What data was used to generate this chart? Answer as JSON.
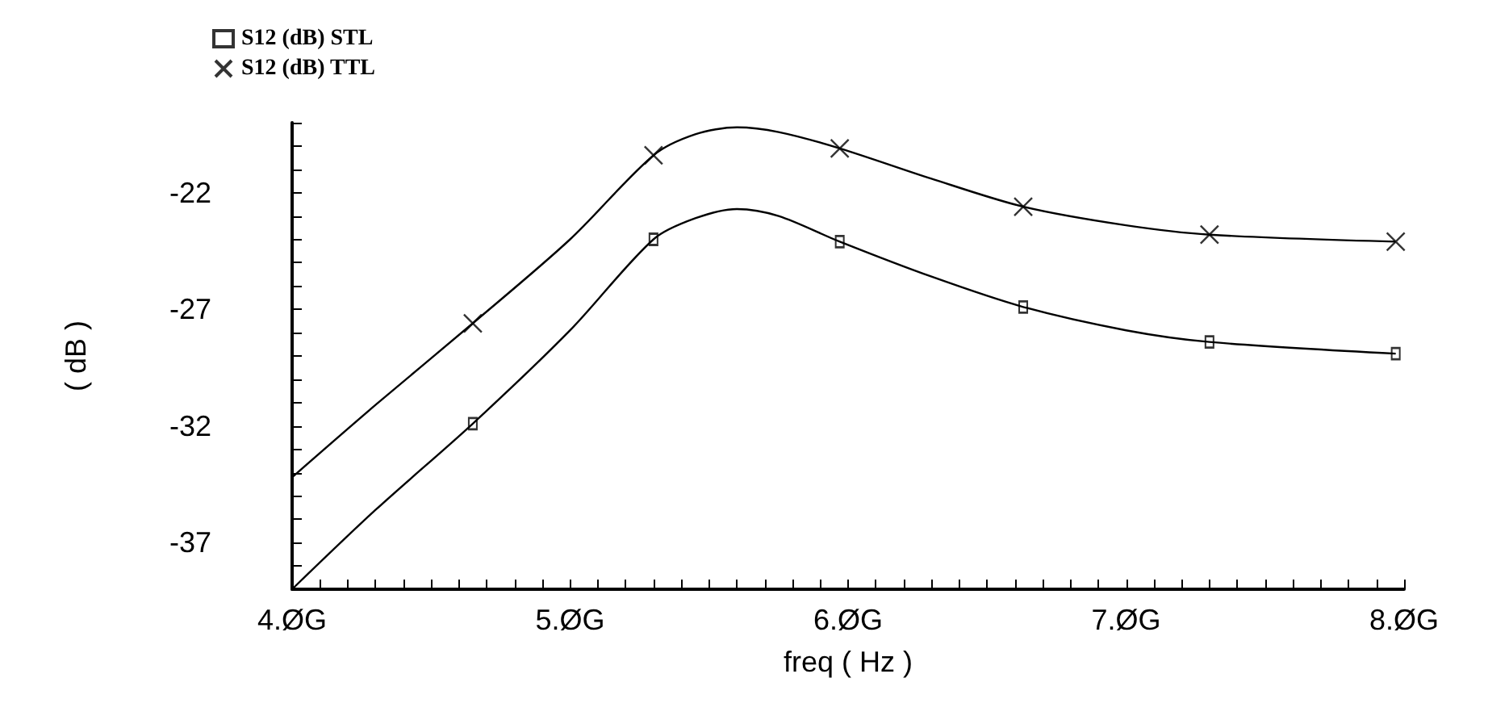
{
  "chart_data": {
    "type": "line",
    "xlabel": "freq ( Hz )",
    "ylabel": "( dB )",
    "xlim": [
      4,
      8
    ],
    "ylim": [
      -39,
      -19
    ],
    "xticks": [
      {
        "value": 4,
        "label": "4.ØG"
      },
      {
        "value": 4.1,
        "label": null
      },
      {
        "value": 4.2,
        "label": null
      },
      {
        "value": 4.3,
        "label": null
      },
      {
        "value": 4.4,
        "label": null
      },
      {
        "value": 4.5,
        "label": null
      },
      {
        "value": 4.6,
        "label": null
      },
      {
        "value": 4.7,
        "label": null
      },
      {
        "value": 4.8,
        "label": null
      },
      {
        "value": 4.9,
        "label": null
      },
      {
        "value": 5,
        "label": "5.ØG"
      },
      {
        "value": 5.1,
        "label": null
      },
      {
        "value": 5.2,
        "label": null
      },
      {
        "value": 5.3,
        "label": null
      },
      {
        "value": 5.4,
        "label": null
      },
      {
        "value": 5.5,
        "label": null
      },
      {
        "value": 5.6,
        "label": null
      },
      {
        "value": 5.7,
        "label": null
      },
      {
        "value": 5.8,
        "label": null
      },
      {
        "value": 5.9,
        "label": null
      },
      {
        "value": 6,
        "label": "6.ØG"
      },
      {
        "value": 6.1,
        "label": null
      },
      {
        "value": 6.2,
        "label": null
      },
      {
        "value": 6.3,
        "label": null
      },
      {
        "value": 6.4,
        "label": null
      },
      {
        "value": 6.5,
        "label": null
      },
      {
        "value": 6.6,
        "label": null
      },
      {
        "value": 6.7,
        "label": null
      },
      {
        "value": 6.8,
        "label": null
      },
      {
        "value": 6.9,
        "label": null
      },
      {
        "value": 7,
        "label": "7.ØG"
      },
      {
        "value": 7.1,
        "label": null
      },
      {
        "value": 7.2,
        "label": null
      },
      {
        "value": 7.3,
        "label": null
      },
      {
        "value": 7.4,
        "label": null
      },
      {
        "value": 7.5,
        "label": null
      },
      {
        "value": 7.6,
        "label": null
      },
      {
        "value": 7.7,
        "label": null
      },
      {
        "value": 7.8,
        "label": null
      },
      {
        "value": 7.9,
        "label": null
      },
      {
        "value": 8,
        "label": "8.ØG"
      }
    ],
    "yticks": [
      {
        "value": -39,
        "label": null
      },
      {
        "value": -38,
        "label": null
      },
      -37,
      {
        "value": -36,
        "label": null
      },
      {
        "value": -35,
        "label": null
      },
      {
        "value": -34,
        "label": null
      },
      {
        "value": -33,
        "label": null
      },
      -32,
      {
        "value": -31,
        "label": null
      },
      {
        "value": -30,
        "label": null
      },
      {
        "value": -29,
        "label": null
      },
      {
        "value": -28,
        "label": null
      },
      -27,
      {
        "value": -26,
        "label": null
      },
      {
        "value": -25,
        "label": null
      },
      {
        "value": -24,
        "label": null
      },
      {
        "value": -23,
        "label": null
      },
      -22,
      {
        "value": -21,
        "label": null
      },
      {
        "value": -20,
        "label": null
      },
      {
        "value": -19,
        "label": null
      }
    ],
    "grid": false,
    "legend": "top left",
    "line_style": "solid",
    "series": [
      {
        "color": "#000000",
        "marker": "none",
        "x": [
          4.0,
          4.3,
          4.65,
          5.0,
          5.3,
          5.45,
          5.6,
          5.75,
          5.97,
          6.3,
          6.63,
          7.0,
          7.3,
          7.97
        ],
        "values": [
          -39.0,
          -35.6,
          -31.9,
          -27.9,
          -24.0,
          -23.1,
          -22.7,
          -23.0,
          -24.1,
          -25.6,
          -26.9,
          -27.9,
          -28.4,
          -28.9
        ]
      },
      {
        "color": "#000000",
        "marker": "none",
        "x": [
          4.0,
          4.3,
          4.65,
          5.0,
          5.3,
          5.45,
          5.6,
          5.75,
          5.97,
          6.3,
          6.63,
          7.0,
          7.3,
          7.97
        ],
        "values": [
          -34.2,
          -31.1,
          -27.6,
          -24.0,
          -20.4,
          -19.5,
          -19.2,
          -19.4,
          -20.1,
          -21.4,
          -22.6,
          -23.4,
          -23.8,
          -24.1
        ]
      },
      {
        "type": "scatter",
        "name": "S12 (dB) STL",
        "color": "#000000",
        "marker": "square",
        "x": [
          4.65,
          5.3,
          5.97,
          6.63,
          7.3,
          7.97
        ],
        "values": [
          -31.9,
          -24.0,
          -24.1,
          -26.9,
          -28.4,
          -28.9
        ]
      },
      {
        "type": "scatter",
        "name": "S12 (dB) TTL",
        "color": "#000000",
        "marker": "cross",
        "x": [
          4.65,
          5.3,
          5.97,
          6.63,
          7.3,
          7.97
        ],
        "values": [
          -27.6,
          -20.4,
          -20.1,
          -22.6,
          -23.8,
          -24.1
        ]
      }
    ]
  }
}
